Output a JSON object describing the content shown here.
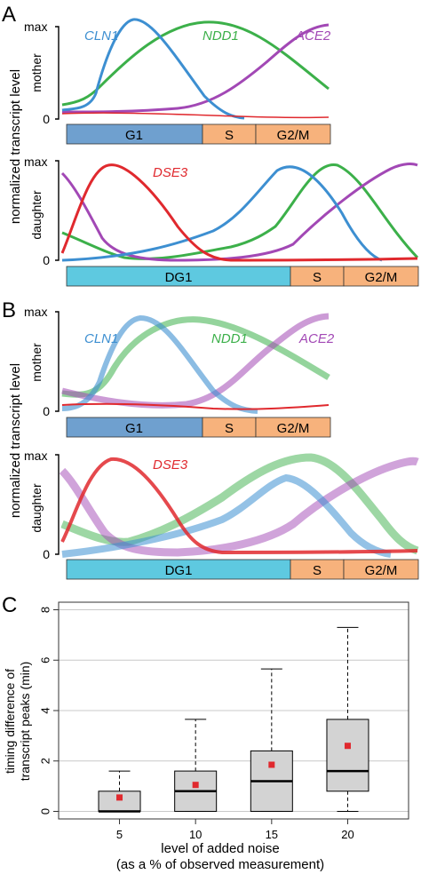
{
  "panels": {
    "A": {
      "letter": "A",
      "shared_ylabel": "normalized transcript level",
      "mother": {
        "ymax_label": "max",
        "ymin_label": "0",
        "ylabel": "mother",
        "gene_labels": {
          "cln1": "CLN1",
          "ndd1": "NDD1",
          "ace2": "ACE2"
        },
        "phases": {
          "g1": "G1",
          "s": "S",
          "g2m": "G2/M"
        }
      },
      "daughter": {
        "ymax_label": "max",
        "ymin_label": "0",
        "ylabel": "daughter",
        "gene_labels": {
          "dse3": "DSE3"
        },
        "phases": {
          "dg1": "DG1",
          "s": "S",
          "g2m": "G2/M"
        }
      }
    },
    "B": {
      "letter": "B",
      "shared_ylabel": "normalized transcript level",
      "mother": {
        "ymax_label": "max",
        "ymin_label": "0",
        "ylabel": "mother",
        "gene_labels": {
          "cln1": "CLN1",
          "ndd1": "NDD1",
          "ace2": "ACE2"
        },
        "phases": {
          "g1": "G1",
          "s": "S",
          "g2m": "G2/M"
        }
      },
      "daughter": {
        "ymax_label": "max",
        "ymin_label": "0",
        "ylabel": "daughter",
        "gene_labels": {
          "dse3": "DSE3"
        },
        "phases": {
          "dg1": "DG1",
          "s": "S",
          "g2m": "G2/M"
        }
      }
    },
    "C": {
      "letter": "C"
    }
  },
  "colors": {
    "cln1": "#3d8fd1",
    "ndd1": "#3cb04a",
    "ace2": "#a248b5",
    "dse3": "#e0292e",
    "g1_bar": "#6fa0cf",
    "dg1_bar": "#5ec9e0",
    "s_bar": "#f7b27c",
    "box_fill": "#d3d3d3",
    "mean_marker": "#e0292e"
  },
  "chart_data": {
    "type": "box",
    "xlabel": "level of added noise",
    "xlabel_sub": "(as a % of observed measurement)",
    "ylabel_line1": "timing difference of",
    "ylabel_line2": "transcript peaks (min)",
    "ylim": [
      -0.3,
      8.3
    ],
    "yticks": [
      0,
      2,
      4,
      6,
      8
    ],
    "grid": true,
    "categories": [
      "5",
      "10",
      "15",
      "20"
    ],
    "boxes": [
      {
        "whisker_low": 0,
        "q1": 0,
        "median": 0,
        "q3": 0.8,
        "whisker_high": 1.6,
        "mean": 0.55
      },
      {
        "whisker_low": 0,
        "q1": 0,
        "median": 0.8,
        "q3": 1.6,
        "whisker_high": 3.65,
        "mean": 1.05
      },
      {
        "whisker_low": 0,
        "q1": 0,
        "median": 1.2,
        "q3": 2.4,
        "whisker_high": 5.65,
        "mean": 1.85
      },
      {
        "whisker_low": 0,
        "q1": 0.8,
        "median": 1.6,
        "q3": 3.65,
        "whisker_high": 7.3,
        "mean": 2.6
      }
    ]
  }
}
